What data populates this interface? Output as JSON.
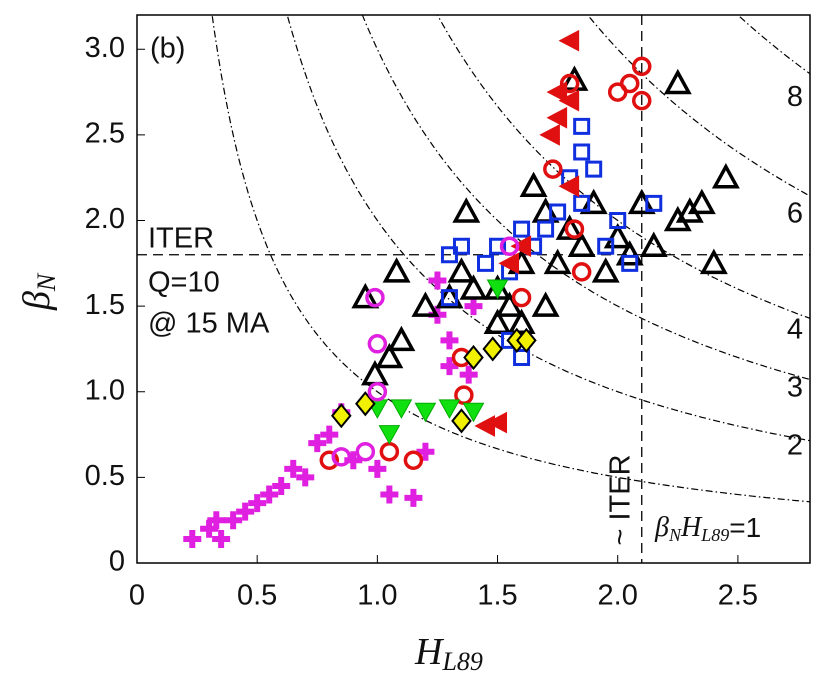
{
  "chart_data": {
    "type": "scatter",
    "xlabel": {
      "main": "H",
      "sub": "L89"
    },
    "ylabel": {
      "main": "β",
      "sub": "N"
    },
    "xlim": [
      0,
      2.8
    ],
    "ylim": [
      0,
      3.2
    ],
    "xticks": [
      0,
      0.5,
      {
        "value": 1,
        "label": "1.0"
      },
      1.5,
      {
        "value": 2,
        "label": "2.0"
      },
      2.5
    ],
    "yticks": [
      0,
      0.5,
      {
        "value": 1,
        "label": "1.0"
      },
      1.5,
      {
        "value": 2,
        "label": "2.0"
      },
      2.5,
      {
        "value": 3,
        "label": "3.0"
      }
    ],
    "contours": [
      1,
      2,
      3,
      4,
      6,
      8
    ],
    "contour_1_label": {
      "beta": "β",
      "beta_sub": "N",
      "h": "H",
      "h_sub": "L89",
      "eq": "=1"
    },
    "iter_beta": 1.8,
    "iter_h": 2.1,
    "annotations": {
      "panel": "(b)",
      "iter": "ITER",
      "q": "Q=10",
      "ma": "@ 15 MA",
      "iter_v": "~ ITER"
    },
    "series": [
      {
        "marker": "plus",
        "color": "#e020e0",
        "x": [
          0.23,
          0.3,
          0.33,
          0.35,
          0.4,
          0.45,
          0.5,
          0.55,
          0.6,
          0.65,
          0.7,
          0.75,
          0.8,
          0.9,
          1.0,
          1.05,
          1.15,
          1.2,
          0.85,
          1.25,
          1.4,
          1.3,
          1.25,
          1.38,
          1.3
        ],
        "y": [
          0.14,
          0.2,
          0.25,
          0.14,
          0.25,
          0.3,
          0.35,
          0.4,
          0.45,
          0.55,
          0.5,
          0.7,
          0.75,
          0.6,
          0.55,
          0.4,
          0.38,
          0.65,
          0.88,
          1.45,
          1.5,
          1.15,
          1.65,
          1.1,
          1.3
        ]
      },
      {
        "marker": "triangle",
        "color": "#000000",
        "x": [
          1.08,
          0.95,
          0.99,
          1.05,
          1.1,
          1.2,
          1.3,
          1.35,
          1.4,
          1.5,
          1.55,
          1.6,
          1.65,
          1.7,
          1.75,
          1.8,
          1.85,
          1.9,
          1.95,
          2.0,
          2.05,
          2.1,
          2.15,
          2.25,
          2.3,
          2.35,
          2.4,
          2.45,
          2.25,
          1.37,
          1.82,
          1.6,
          1.5,
          1.7
        ],
        "y": [
          1.7,
          1.55,
          1.1,
          1.2,
          1.3,
          1.5,
          1.55,
          1.7,
          1.6,
          1.6,
          1.5,
          1.75,
          2.2,
          2.05,
          1.75,
          1.95,
          1.85,
          2.1,
          1.7,
          1.9,
          1.8,
          2.1,
          1.85,
          2.0,
          2.05,
          2.1,
          1.75,
          2.25,
          2.8,
          2.05,
          2.82,
          1.4,
          1.4,
          1.5
        ]
      },
      {
        "marker": "square",
        "color": "#1030e0",
        "x": [
          1.3,
          1.3,
          1.35,
          1.45,
          1.5,
          1.55,
          1.6,
          1.65,
          1.7,
          1.75,
          1.8,
          1.85,
          1.9,
          1.95,
          2.0,
          1.85,
          1.85,
          2.15,
          2.05,
          1.6,
          1.55
        ],
        "y": [
          1.55,
          1.8,
          1.85,
          1.75,
          1.85,
          1.7,
          1.95,
          1.85,
          1.95,
          2.05,
          2.25,
          2.1,
          2.3,
          1.85,
          2.0,
          2.55,
          2.4,
          2.1,
          1.75,
          1.2,
          1.3
        ]
      },
      {
        "marker": "circle",
        "color": "#e01010",
        "x": [
          1.73,
          1.82,
          1.85,
          2.05,
          2.1,
          2.0,
          2.1,
          1.6,
          1.35,
          1.36,
          1.05,
          1.15,
          0.8,
          1.8
        ],
        "y": [
          2.3,
          1.95,
          1.7,
          2.8,
          2.9,
          2.75,
          2.7,
          1.55,
          1.2,
          0.98,
          0.65,
          0.6,
          0.6,
          2.8
        ]
      },
      {
        "marker": "left",
        "color": "#e01010",
        "x": [
          1.8,
          1.75,
          1.72,
          1.8,
          1.75,
          1.8,
          1.6,
          1.45,
          1.5,
          1.55
        ],
        "y": [
          3.05,
          2.75,
          2.5,
          2.7,
          2.6,
          2.2,
          1.85,
          0.8,
          0.82,
          1.75
        ]
      },
      {
        "marker": "down",
        "color": "#10e010",
        "x": [
          1.0,
          1.1,
          1.2,
          1.3,
          1.4,
          1.5,
          1.05
        ],
        "y": [
          0.9,
          0.9,
          0.88,
          0.9,
          0.88,
          1.6,
          0.75
        ]
      },
      {
        "marker": "diamond",
        "color": "#f0f000",
        "x": [
          0.85,
          0.95,
          1.35,
          1.4,
          1.48,
          1.58,
          1.62
        ],
        "y": [
          0.86,
          0.93,
          0.83,
          1.2,
          1.25,
          1.3,
          1.3
        ]
      },
      {
        "marker": "ring",
        "color": "#e020e0",
        "x": [
          0.99,
          1.0,
          1.0,
          0.95,
          0.85,
          1.55
        ],
        "y": [
          1.55,
          1.28,
          1.0,
          0.65,
          0.62,
          1.85
        ]
      }
    ]
  }
}
